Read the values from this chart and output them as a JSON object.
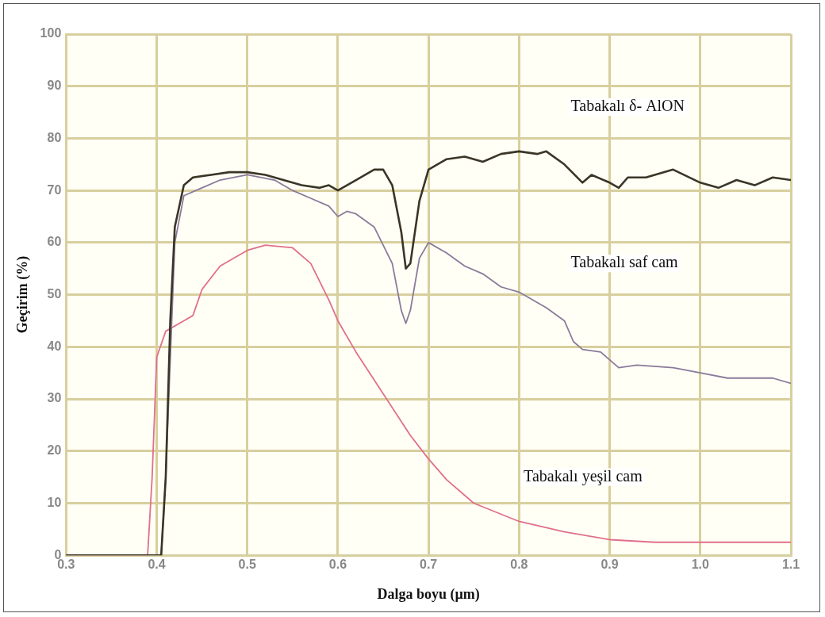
{
  "chart_data": {
    "type": "line",
    "xlabel": "Dalga boyu (µm)",
    "ylabel": "Geçirim (%)",
    "xlim": [
      0.3,
      1.1
    ],
    "xticks": [
      {
        "value": 0.3,
        "label": "0.3"
      },
      {
        "value": 0.4,
        "label": "0.4"
      },
      {
        "value": 0.5,
        "label": "0.5"
      },
      {
        "value": 0.6,
        "label": "0.6"
      },
      {
        "value": 0.7,
        "label": "0.7"
      },
      {
        "value": 0.8,
        "label": "0.8"
      },
      {
        "value": 0.9,
        "label": "0.9"
      },
      {
        "value": 1.0,
        "label": "1.0"
      },
      {
        "value": 1.1,
        "label": "1.1"
      }
    ],
    "ylim": [
      0,
      100
    ],
    "yticks": [
      0,
      10,
      20,
      30,
      40,
      50,
      60,
      70,
      80,
      90,
      100
    ],
    "grid": true,
    "legend": false,
    "marker": "none",
    "line_style": "solid",
    "series": [
      {
        "name": "Tabakalı δ- AlON",
        "color": "#3a3526",
        "x": [
          0.3,
          0.405,
          0.41,
          0.415,
          0.42,
          0.43,
          0.44,
          0.46,
          0.48,
          0.5,
          0.52,
          0.54,
          0.56,
          0.58,
          0.59,
          0.6,
          0.62,
          0.64,
          0.65,
          0.66,
          0.67,
          0.675,
          0.68,
          0.69,
          0.7,
          0.72,
          0.74,
          0.76,
          0.78,
          0.8,
          0.82,
          0.83,
          0.85,
          0.87,
          0.88,
          0.9,
          0.91,
          0.92,
          0.94,
          0.97,
          1.0,
          1.02,
          1.04,
          1.06,
          1.08,
          1.1
        ],
        "values": [
          0,
          0,
          15,
          45,
          63,
          71,
          72.5,
          73,
          73.5,
          73.5,
          73,
          72,
          71,
          70.5,
          71,
          70,
          72,
          74,
          74,
          71,
          62,
          55,
          56,
          68,
          74,
          76,
          76.5,
          75.5,
          77,
          77.5,
          77,
          77.5,
          75,
          71.5,
          73,
          71.5,
          70.5,
          72.5,
          72.5,
          74,
          71.5,
          70.5,
          72,
          71,
          72.5,
          72
        ]
      },
      {
        "name": "Tabakalı saf cam",
        "color": "#8a7a9a",
        "x": [
          0.3,
          0.405,
          0.41,
          0.42,
          0.43,
          0.45,
          0.47,
          0.5,
          0.53,
          0.55,
          0.57,
          0.59,
          0.6,
          0.61,
          0.62,
          0.64,
          0.66,
          0.67,
          0.675,
          0.68,
          0.69,
          0.7,
          0.72,
          0.74,
          0.76,
          0.78,
          0.8,
          0.83,
          0.85,
          0.86,
          0.87,
          0.89,
          0.91,
          0.93,
          0.97,
          1.0,
          1.03,
          1.05,
          1.08,
          1.1
        ],
        "values": [
          0,
          0,
          15,
          60,
          69,
          70.5,
          72,
          73,
          72,
          70,
          68.5,
          67,
          65,
          66,
          65.5,
          63,
          56,
          47,
          44.5,
          47,
          57,
          60,
          58,
          55.5,
          54,
          51.5,
          50.5,
          47.5,
          45,
          41,
          39.5,
          39,
          36,
          36.5,
          36,
          35,
          34,
          34,
          34,
          33
        ]
      },
      {
        "name": "Tabakalı yeşil cam",
        "color": "#e0708a",
        "x": [
          0.3,
          0.39,
          0.395,
          0.4,
          0.41,
          0.43,
          0.44,
          0.45,
          0.47,
          0.5,
          0.52,
          0.55,
          0.57,
          0.59,
          0.6,
          0.62,
          0.65,
          0.68,
          0.7,
          0.72,
          0.75,
          0.8,
          0.85,
          0.9,
          0.95,
          1.0,
          1.1
        ],
        "values": [
          0,
          0,
          15,
          38,
          43,
          45,
          46,
          51,
          55.5,
          58.5,
          59.5,
          59,
          56,
          49,
          45,
          39,
          31,
          23,
          18.5,
          14.5,
          10,
          6.5,
          4.5,
          3,
          2.5,
          2.5,
          2.5
        ]
      }
    ]
  }
}
